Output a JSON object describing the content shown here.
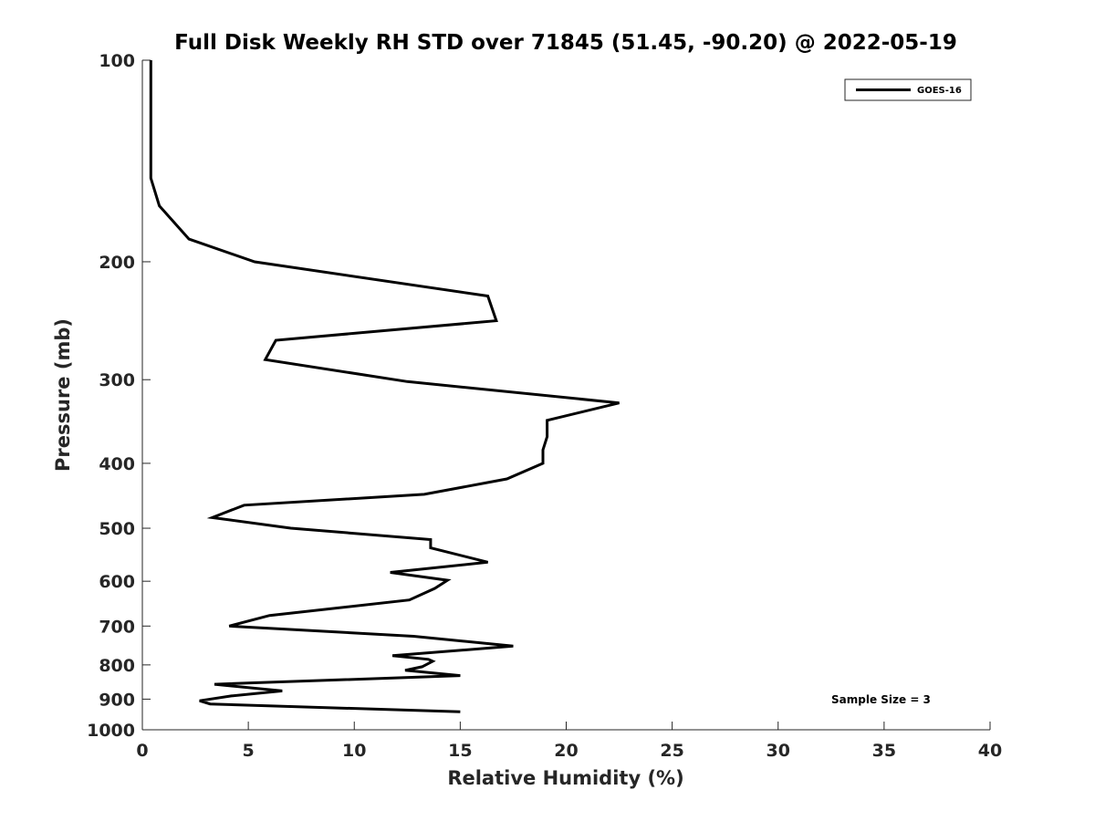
{
  "chart_data": {
    "type": "line",
    "title": "Full Disk Weekly RH STD over 71845 (51.45, -90.20) @ 2022-05-19",
    "xlabel": "Relative Humidity (%)",
    "ylabel": "Pressure (mb)",
    "xlim": [
      0,
      40
    ],
    "ylim": [
      100,
      1000
    ],
    "y_scale": "log",
    "y_reversed": true,
    "xticks": [
      0,
      5,
      10,
      15,
      20,
      25,
      30,
      35,
      40
    ],
    "yticks": [
      100,
      200,
      300,
      400,
      500,
      600,
      700,
      800,
      900,
      1000
    ],
    "grid": false,
    "legend_position": "top-right",
    "annotation": "Sample Size = 3",
    "series": [
      {
        "name": "GOES-16",
        "color": "#000000",
        "points": [
          [
            0.4,
            100
          ],
          [
            0.4,
            150
          ],
          [
            0.8,
            165
          ],
          [
            2.2,
            185
          ],
          [
            5.3,
            200
          ],
          [
            16.3,
            225
          ],
          [
            16.7,
            245
          ],
          [
            6.3,
            262
          ],
          [
            5.8,
            280
          ],
          [
            12.5,
            302
          ],
          [
            22.5,
            325
          ],
          [
            19.1,
            345
          ],
          [
            19.1,
            365
          ],
          [
            18.9,
            382
          ],
          [
            18.9,
            400
          ],
          [
            17.2,
            422
          ],
          [
            13.3,
            445
          ],
          [
            4.8,
            462
          ],
          [
            3.3,
            482
          ],
          [
            7.0,
            500
          ],
          [
            13.6,
            520
          ],
          [
            13.6,
            535
          ],
          [
            16.3,
            562
          ],
          [
            11.7,
            582
          ],
          [
            14.4,
            598
          ],
          [
            13.8,
            615
          ],
          [
            12.6,
            640
          ],
          [
            6.0,
            675
          ],
          [
            4.1,
            700
          ],
          [
            12.8,
            725
          ],
          [
            17.5,
            750
          ],
          [
            11.8,
            775
          ],
          [
            13.5,
            785
          ],
          [
            13.7,
            790
          ],
          [
            13.2,
            805
          ],
          [
            12.4,
            815
          ],
          [
            15.0,
            830
          ],
          [
            3.4,
            855
          ],
          [
            6.6,
            875
          ],
          [
            4.2,
            890
          ],
          [
            2.7,
            905
          ],
          [
            3.2,
            915
          ],
          [
            15.0,
            940
          ]
        ]
      }
    ]
  }
}
